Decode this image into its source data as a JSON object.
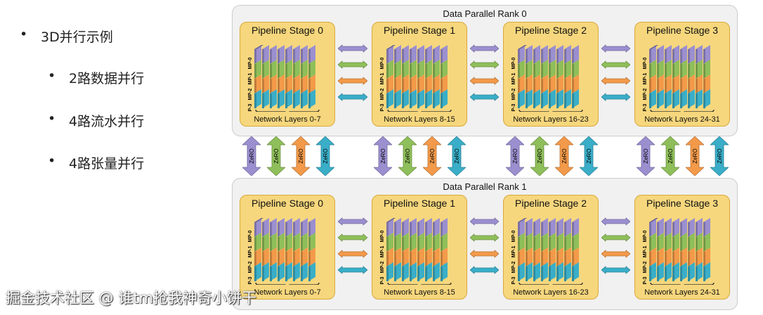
{
  "bullets": [
    "3D并行示例",
    "2路数据并行",
    "4路流水并行",
    "4路张量并行"
  ],
  "ranks": [
    {
      "title": "Data Parallel Rank 0",
      "stages": [
        {
          "title": "Pipeline Stage 0",
          "layers": "Network Layers 0-7"
        },
        {
          "title": "Pipeline Stage 1",
          "layers": "Network Layers 8-15"
        },
        {
          "title": "Pipeline Stage 2",
          "layers": "Network Layers 16-23"
        },
        {
          "title": "Pipeline Stage 3",
          "layers": "Network Layers 24-31"
        }
      ]
    },
    {
      "title": "Data Parallel Rank 1",
      "stages": [
        {
          "title": "Pipeline Stage 0",
          "layers": "Network Layers 0-7"
        },
        {
          "title": "Pipeline Stage 1",
          "layers": "Network Layers 8-15"
        },
        {
          "title": "Pipeline Stage 2",
          "layers": "Network Layers 16-23"
        },
        {
          "title": "Pipeline Stage 3",
          "layers": "Network Layers 24-31"
        }
      ]
    }
  ],
  "mp_labels": [
    "MP-0",
    "MP-1",
    "MP-2",
    "MP-3"
  ],
  "zero_label": "ZeRO",
  "colors": {
    "mp0": "#9b8fd0",
    "mp1": "#8fbf5a",
    "mp2": "#f39a4a",
    "mp3": "#3aaec8",
    "stage": "#f6d77d"
  },
  "watermark": "掘金技术社区 @ 谁tm抢我神奇小饼干"
}
